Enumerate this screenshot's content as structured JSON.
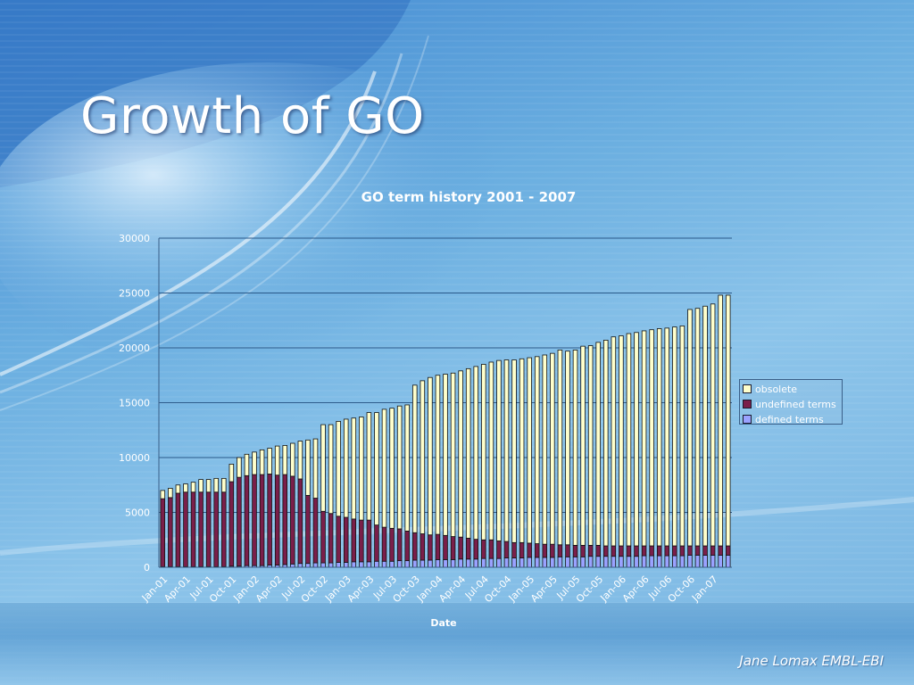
{
  "slide": {
    "title": "Growth of GO",
    "footer": "Jane Lomax EMBL-EBI"
  },
  "colors": {
    "obsolete": "#ffffcc",
    "undefined": "#7a1f4a",
    "defined": "#9aa2ff",
    "outline": "#111111",
    "grid": "#2c5a8a"
  },
  "chart_data": {
    "type": "bar",
    "stacked": true,
    "title": "GO term history 2001 - 2007",
    "xlabel": "Date",
    "ylabel": "",
    "ylim": [
      0,
      30000
    ],
    "yticks": [
      0,
      5000,
      10000,
      15000,
      20000,
      25000,
      30000
    ],
    "grid": true,
    "legend_position": "right",
    "x": [
      "Jan-01",
      "Feb-01",
      "Mar-01",
      "Apr-01",
      "May-01",
      "Jun-01",
      "Jul-01",
      "Aug-01",
      "Sep-01",
      "Oct-01",
      "Nov-01",
      "Dec-01",
      "Jan-02",
      "Feb-02",
      "Mar-02",
      "Apr-02",
      "May-02",
      "Jun-02",
      "Jul-02",
      "Aug-02",
      "Sep-02",
      "Oct-02",
      "Nov-02",
      "Dec-02",
      "Jan-03",
      "Feb-03",
      "Mar-03",
      "Apr-03",
      "May-03",
      "Jun-03",
      "Jul-03",
      "Aug-03",
      "Sep-03",
      "Oct-03",
      "Nov-03",
      "Dec-03",
      "Jan-04",
      "Feb-04",
      "Mar-04",
      "Apr-04",
      "May-04",
      "Jun-04",
      "Jul-04",
      "Aug-04",
      "Sep-04",
      "Oct-04",
      "Nov-04",
      "Dec-04",
      "Jan-05",
      "Feb-05",
      "Mar-05",
      "Apr-05",
      "May-05",
      "Jun-05",
      "Jul-05",
      "Aug-05",
      "Sep-05",
      "Oct-05",
      "Nov-05",
      "Dec-05",
      "Jan-06",
      "Feb-06",
      "Mar-06",
      "Apr-06",
      "May-06",
      "Jun-06",
      "Jul-06",
      "Aug-06",
      "Sep-06",
      "Oct-06",
      "Nov-06",
      "Dec-06",
      "Jan-07",
      "Feb-07",
      "Mar-07"
    ],
    "xtick_labels": [
      "Jan-01",
      "Apr-01",
      "Jul-01",
      "Oct-01",
      "Jan-02",
      "Apr-02",
      "Jul-02",
      "Oct-02",
      "Jan-03",
      "Apr-03",
      "Jul-03",
      "Oct-03",
      "Jan-04",
      "Apr-04",
      "Jul-04",
      "Oct-04",
      "Jan-05",
      "Apr-05",
      "Jul-05",
      "Oct-05",
      "Jan-06",
      "Apr-06",
      "Jul-06",
      "Oct-06",
      "Jan-07"
    ],
    "series": [
      {
        "name": "defined terms",
        "key": "defined",
        "values": [
          50,
          50,
          50,
          50,
          50,
          50,
          50,
          50,
          50,
          100,
          100,
          150,
          150,
          150,
          200,
          200,
          250,
          300,
          350,
          350,
          400,
          400,
          400,
          450,
          450,
          500,
          500,
          500,
          550,
          550,
          550,
          600,
          600,
          650,
          650,
          650,
          700,
          700,
          700,
          750,
          750,
          750,
          800,
          800,
          800,
          850,
          850,
          850,
          900,
          900,
          900,
          900,
          950,
          950,
          950,
          950,
          1000,
          1000,
          1000,
          1000,
          1000,
          1000,
          1000,
          1050,
          1050,
          1050,
          1050,
          1050,
          1050,
          1100,
          1100,
          1100,
          1100,
          1100,
          1100
        ]
      },
      {
        "name": "undefined terms",
        "key": "undefined",
        "values": [
          6200,
          6300,
          6700,
          6800,
          6800,
          6800,
          6800,
          6800,
          6800,
          7700,
          8100,
          8200,
          8300,
          8300,
          8300,
          8200,
          8200,
          8000,
          7700,
          6200,
          5900,
          4700,
          4500,
          4200,
          4100,
          3900,
          3800,
          3800,
          3300,
          3100,
          3000,
          2900,
          2700,
          2500,
          2400,
          2300,
          2300,
          2200,
          2100,
          2000,
          1900,
          1800,
          1700,
          1700,
          1600,
          1500,
          1400,
          1400,
          1300,
          1250,
          1200,
          1200,
          1100,
          1100,
          1050,
          1050,
          1000,
          1000,
          950,
          950,
          950,
          950,
          950,
          900,
          900,
          900,
          900,
          900,
          900,
          850,
          850,
          850,
          850,
          850,
          850
        ]
      },
      {
        "name": "obsolete",
        "key": "obsolete",
        "values": [
          750,
          850,
          750,
          750,
          900,
          1150,
          1150,
          1250,
          1250,
          1600,
          1800,
          1950,
          2050,
          2250,
          2350,
          2650,
          2650,
          3000,
          3450,
          5050,
          5400,
          7900,
          8100,
          8650,
          8950,
          9200,
          9400,
          9800,
          10250,
          10750,
          10950,
          11200,
          11500,
          13450,
          13950,
          14350,
          14500,
          14700,
          14900,
          15150,
          15450,
          15750,
          16000,
          16200,
          16450,
          16550,
          16650,
          16750,
          16900,
          17050,
          17250,
          17400,
          17750,
          17650,
          17800,
          18150,
          18200,
          18500,
          18750,
          19050,
          19150,
          19350,
          19450,
          19600,
          19700,
          19800,
          19850,
          19950,
          20050,
          21550,
          21650,
          21850,
          22050,
          22850,
          22850
        ]
      }
    ]
  }
}
